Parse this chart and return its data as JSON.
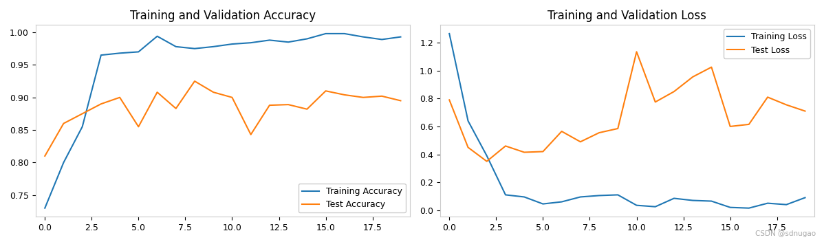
{
  "acc_train": [
    0.73,
    0.8,
    0.855,
    0.965,
    0.968,
    0.97,
    0.994,
    0.978,
    0.975,
    0.978,
    0.982,
    0.984,
    0.988,
    0.985,
    0.99,
    0.998,
    0.998,
    0.993,
    0.989,
    0.993
  ],
  "acc_test": [
    0.81,
    0.86,
    0.875,
    0.89,
    0.9,
    0.855,
    0.908,
    0.883,
    0.925,
    0.908,
    0.9,
    0.843,
    0.888,
    0.889,
    0.882,
    0.91,
    0.904,
    0.9,
    0.902,
    0.895
  ],
  "loss_train": [
    1.265,
    0.64,
    0.39,
    0.11,
    0.095,
    0.045,
    0.06,
    0.095,
    0.105,
    0.11,
    0.035,
    0.025,
    0.085,
    0.07,
    0.065,
    0.02,
    0.015,
    0.05,
    0.04,
    0.09
  ],
  "loss_test": [
    0.79,
    0.45,
    0.35,
    0.46,
    0.415,
    0.42,
    0.565,
    0.49,
    0.555,
    0.585,
    1.135,
    0.775,
    0.85,
    0.955,
    1.025,
    0.6,
    0.615,
    0.81,
    0.755,
    0.71
  ],
  "title_acc": "Training and Validation Accuracy",
  "title_loss": "Training and Validation Loss",
  "label_train_acc": "Training Accuracy",
  "label_test_acc": "Test Accuracy",
  "label_train_loss": "Training Loss",
  "label_test_loss": "Test Loss",
  "color_blue": "#1f77b4",
  "color_orange": "#ff7f0e",
  "watermark": "CSDN @sdnugao",
  "bg_color": "#ffffff",
  "fig_width": 11.98,
  "fig_height": 3.52,
  "dpi": 100
}
